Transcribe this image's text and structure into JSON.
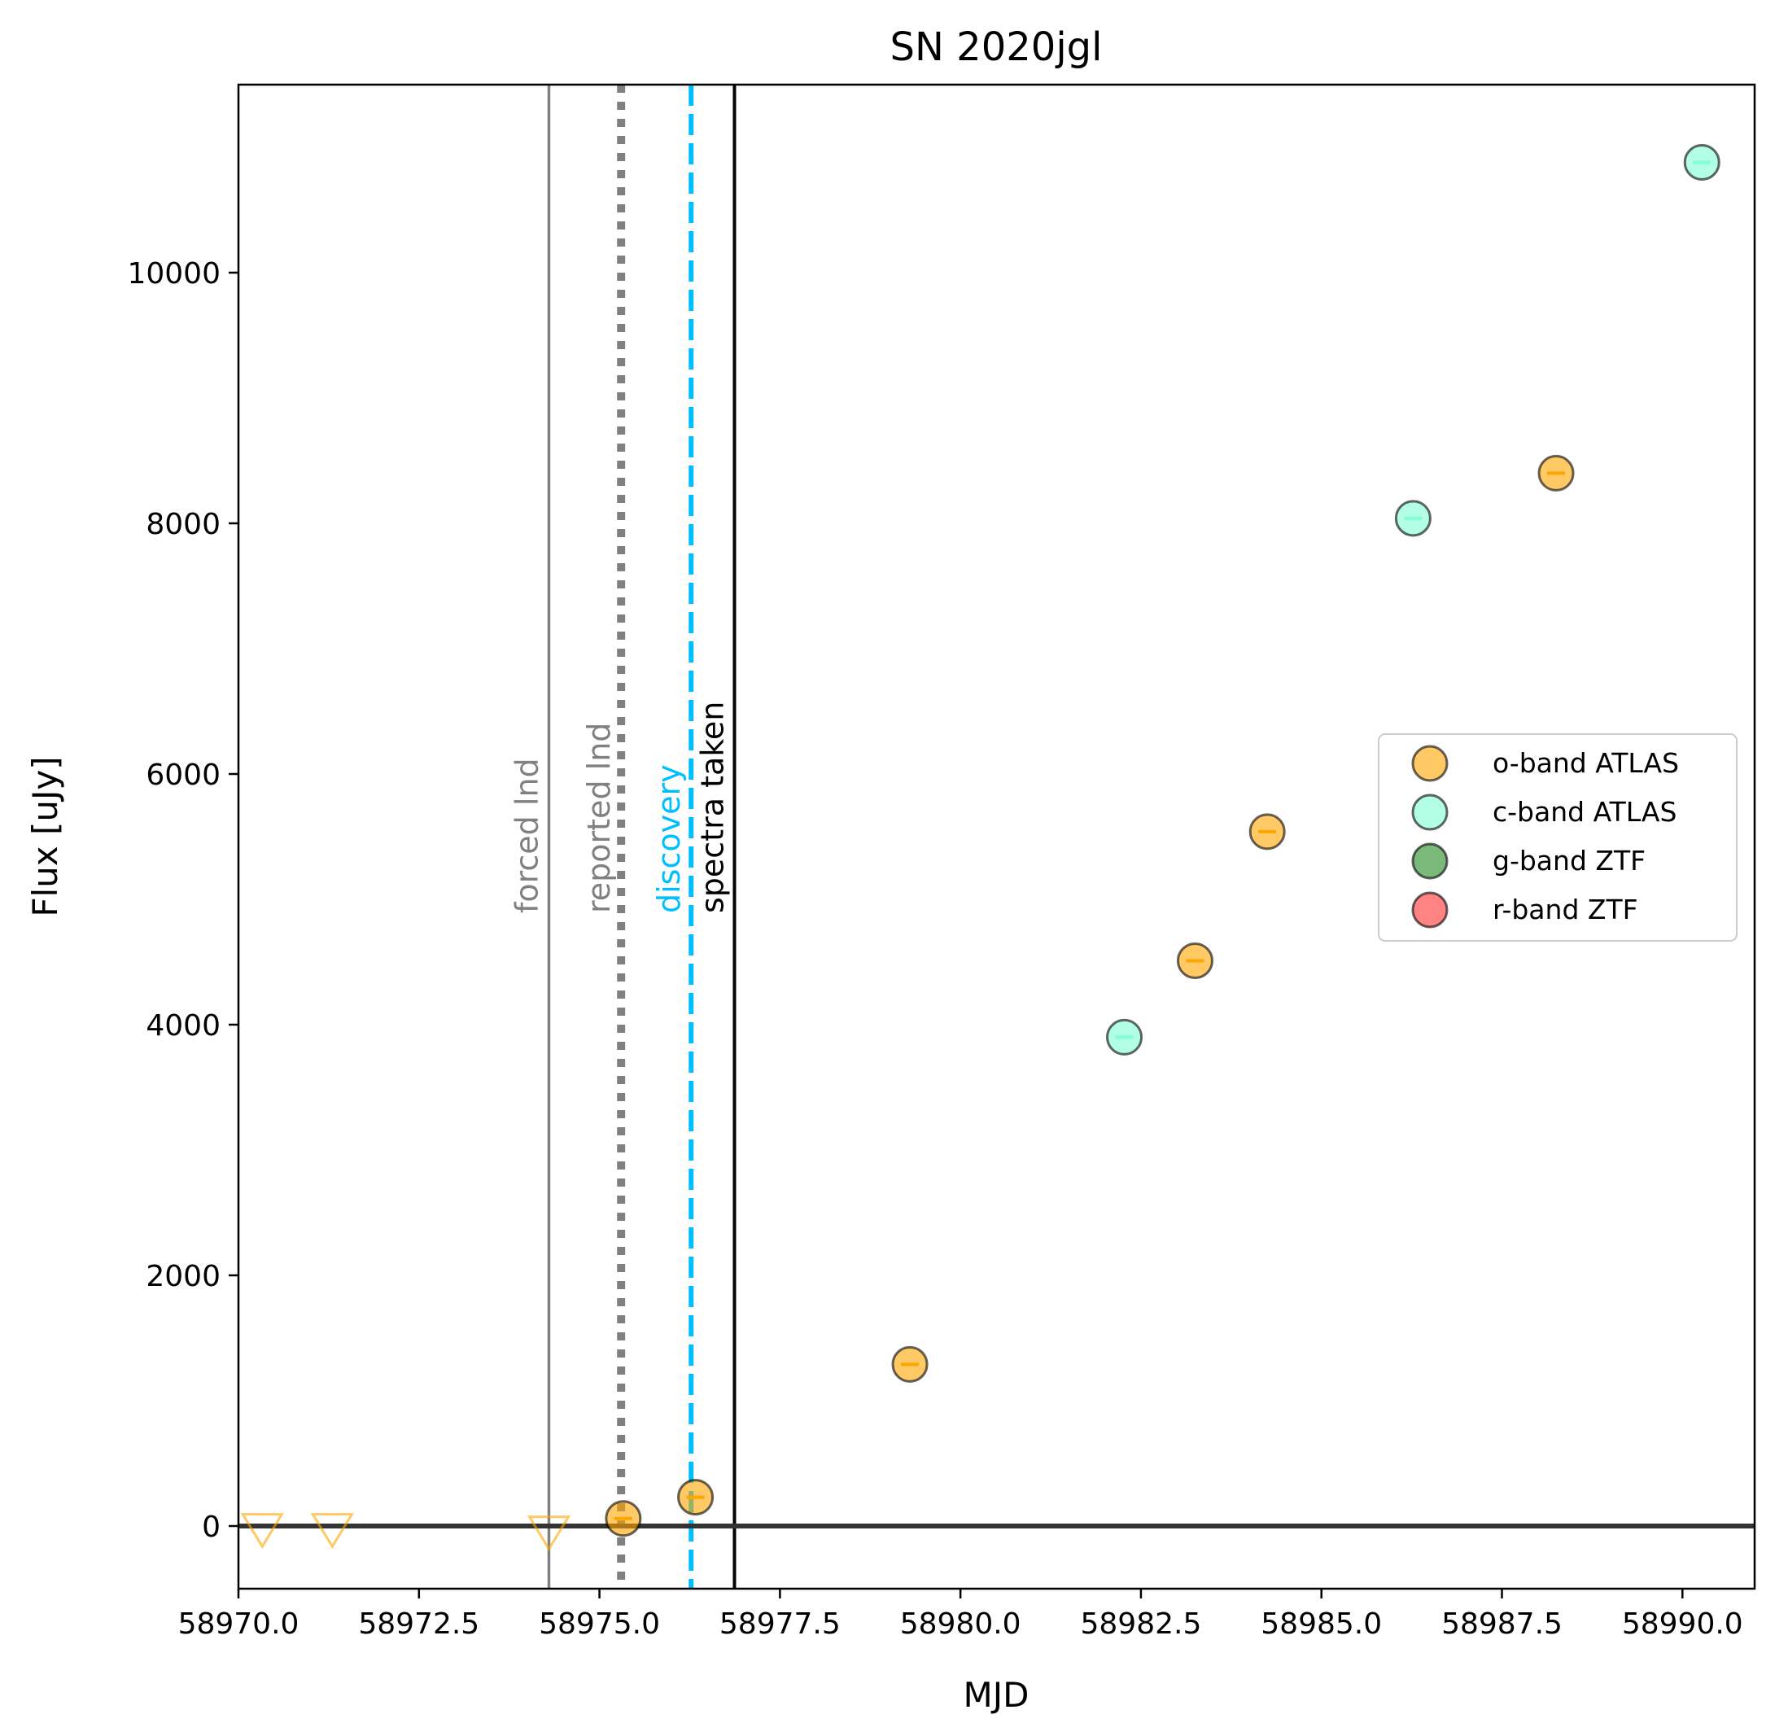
{
  "chart_data": {
    "type": "scatter",
    "title": "SN 2020jgl",
    "xlabel": "MJD",
    "ylabel": "Flux [uJy]",
    "xlim": [
      58970.0,
      58991.0
    ],
    "ylim": [
      -500,
      11500
    ],
    "xticks": [
      58970.0,
      58972.5,
      58975.0,
      58977.5,
      58980.0,
      58982.5,
      58985.0,
      58987.5,
      58990.0
    ],
    "xtick_labels": [
      "58970.0",
      "58972.5",
      "58975.0",
      "58977.5",
      "58980.0",
      "58982.5",
      "58985.0",
      "58987.5",
      "58990.0"
    ],
    "yticks": [
      0,
      2000,
      4000,
      6000,
      8000,
      10000
    ],
    "ytick_labels": [
      "0",
      "2000",
      "4000",
      "6000",
      "8000",
      "10000"
    ],
    "grid": false,
    "legend_position": "right",
    "series": [
      {
        "name": "o-band ATLAS",
        "color": "#ffa500",
        "points": [
          [
            58975.33,
            60
          ],
          [
            58976.33,
            230
          ],
          [
            58979.3,
            1290
          ],
          [
            58983.25,
            4510
          ],
          [
            58984.25,
            5540
          ],
          [
            58988.25,
            8400
          ]
        ]
      },
      {
        "name": "c-band ATLAS",
        "color": "#7fffd4",
        "points": [
          [
            58982.27,
            3900
          ],
          [
            58986.27,
            8040
          ],
          [
            58990.27,
            10880
          ]
        ]
      },
      {
        "name": "g-band ZTF",
        "color": "#228b22",
        "points": []
      },
      {
        "name": "r-band ZTF",
        "color": "#ff3030",
        "points": []
      }
    ],
    "upper_limits": {
      "color": "#ffa500",
      "points": [
        [
          58970.33,
          0
        ],
        [
          58971.3,
          0
        ],
        [
          58974.3,
          -20
        ]
      ]
    },
    "zero_line": 0,
    "vlines": [
      {
        "x": 58974.3,
        "label": "forced lnd",
        "color": "#808080",
        "style": "solid"
      },
      {
        "x": 58975.3,
        "label": "reported lnd",
        "color": "#808080",
        "style": "dotted"
      },
      {
        "x": 58976.27,
        "label": "discovery",
        "color": "#00bfff",
        "style": "dashed"
      },
      {
        "x": 58976.87,
        "label": "spectra taken",
        "color": "#000000",
        "style": "solid"
      }
    ]
  }
}
